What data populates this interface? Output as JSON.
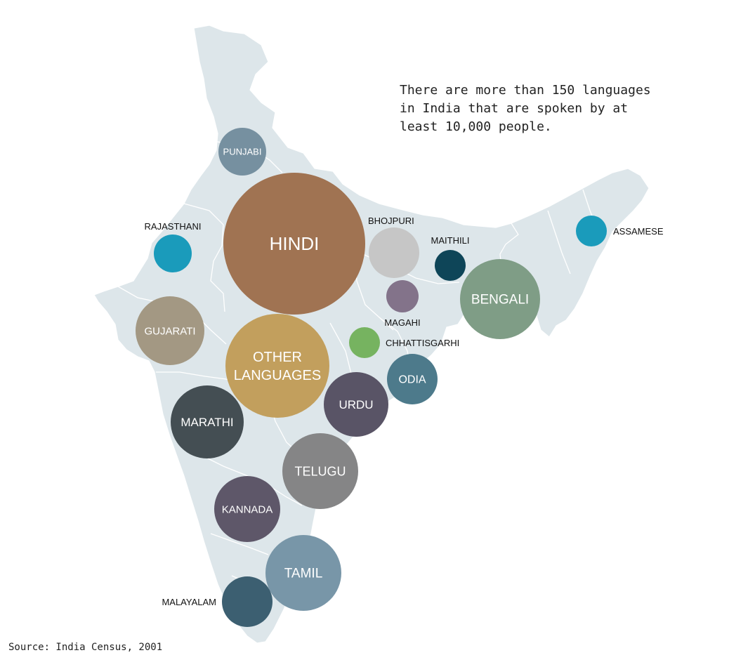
{
  "caption": "There are more than 150 languages\nin India that are spoken by at\nleast 10,000 people.",
  "source": "Source: India Census, 2001",
  "colors": {
    "land": "#dde6ea",
    "border": "#ffffff"
  },
  "bubbles": [
    {
      "name": "HINDI",
      "label_inside": true,
      "color": "#a07352",
      "lines": [
        "HINDI"
      ]
    },
    {
      "name": "OTHER LANGUAGES",
      "label_inside": true,
      "color": "#c29f5d",
      "lines": [
        "OTHER",
        "LANGUAGES"
      ]
    },
    {
      "name": "BENGALI",
      "label_inside": true,
      "color": "#7f9d86",
      "lines": [
        "BENGALI"
      ]
    },
    {
      "name": "TELUGU",
      "label_inside": true,
      "color": "#858586",
      "lines": [
        "TELUGU"
      ]
    },
    {
      "name": "TAMIL",
      "label_inside": true,
      "color": "#7896a8",
      "lines": [
        "TAMIL"
      ]
    },
    {
      "name": "MARATHI",
      "label_inside": true,
      "color": "#444e53",
      "lines": [
        "MARATHI"
      ]
    },
    {
      "name": "URDU",
      "label_inside": true,
      "color": "#595466",
      "lines": [
        "URDU"
      ]
    },
    {
      "name": "GUJARATI",
      "label_inside": true,
      "color": "#a39883",
      "lines": [
        "GUJARATI"
      ]
    },
    {
      "name": "KANNADA",
      "label_inside": true,
      "color": "#5e5769",
      "lines": [
        "KANNADA"
      ]
    },
    {
      "name": "MALAYALAM",
      "label_inside": false,
      "color": "#3c5f71",
      "lines": [
        "MALAYALAM"
      ]
    },
    {
      "name": "ODIA",
      "label_inside": true,
      "color": "#4d7a8b",
      "lines": [
        "ODIA"
      ]
    },
    {
      "name": "PUNJABI",
      "label_inside": true,
      "color": "#7690a0",
      "lines": [
        "PUNJABI"
      ]
    },
    {
      "name": "BHOJPURI",
      "label_inside": false,
      "color": "#c6c6c6",
      "lines": [
        "BHOJPURI"
      ]
    },
    {
      "name": "RAJASTHANI",
      "label_inside": false,
      "color": "#1a9bbb",
      "lines": [
        "RAJASTHANI"
      ]
    },
    {
      "name": "ASSAMESE",
      "label_inside": false,
      "color": "#1a9bbb",
      "lines": [
        "ASSAMESE"
      ]
    },
    {
      "name": "MAITHILI",
      "label_inside": false,
      "color": "#0e4558",
      "lines": [
        "MAITHILI"
      ]
    },
    {
      "name": "MAGAHI",
      "label_inside": false,
      "color": "#83738a",
      "lines": [
        "MAGAHI"
      ]
    },
    {
      "name": "CHHATTISGARHI",
      "label_inside": false,
      "color": "#76b360",
      "lines": [
        "CHHATTISGARHI"
      ]
    }
  ]
}
